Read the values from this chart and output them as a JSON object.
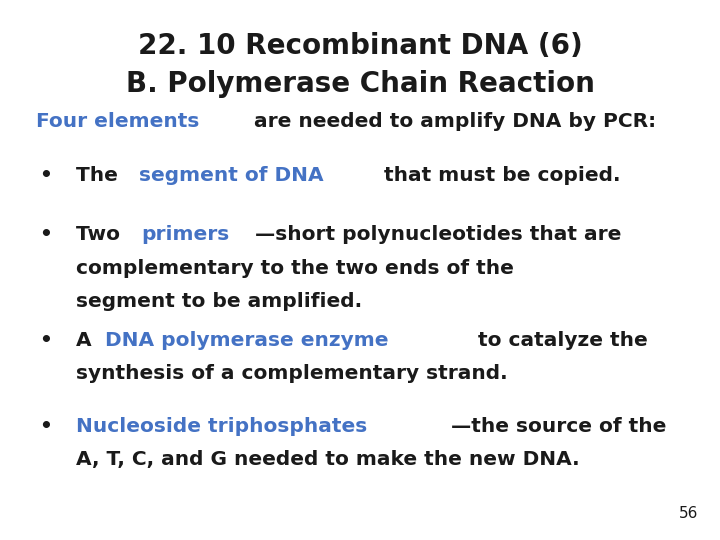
{
  "title_line1": "22. 10 Recombinant DNA (6)",
  "title_line2": "B. Polymerase Chain Reaction",
  "bg_color": "#ffffff",
  "black": "#1a1a1a",
  "blue": "#4472C4",
  "page_number": "56",
  "title_fontsize": 20,
  "body_fontsize": 14.5,
  "page_num_fontsize": 11
}
